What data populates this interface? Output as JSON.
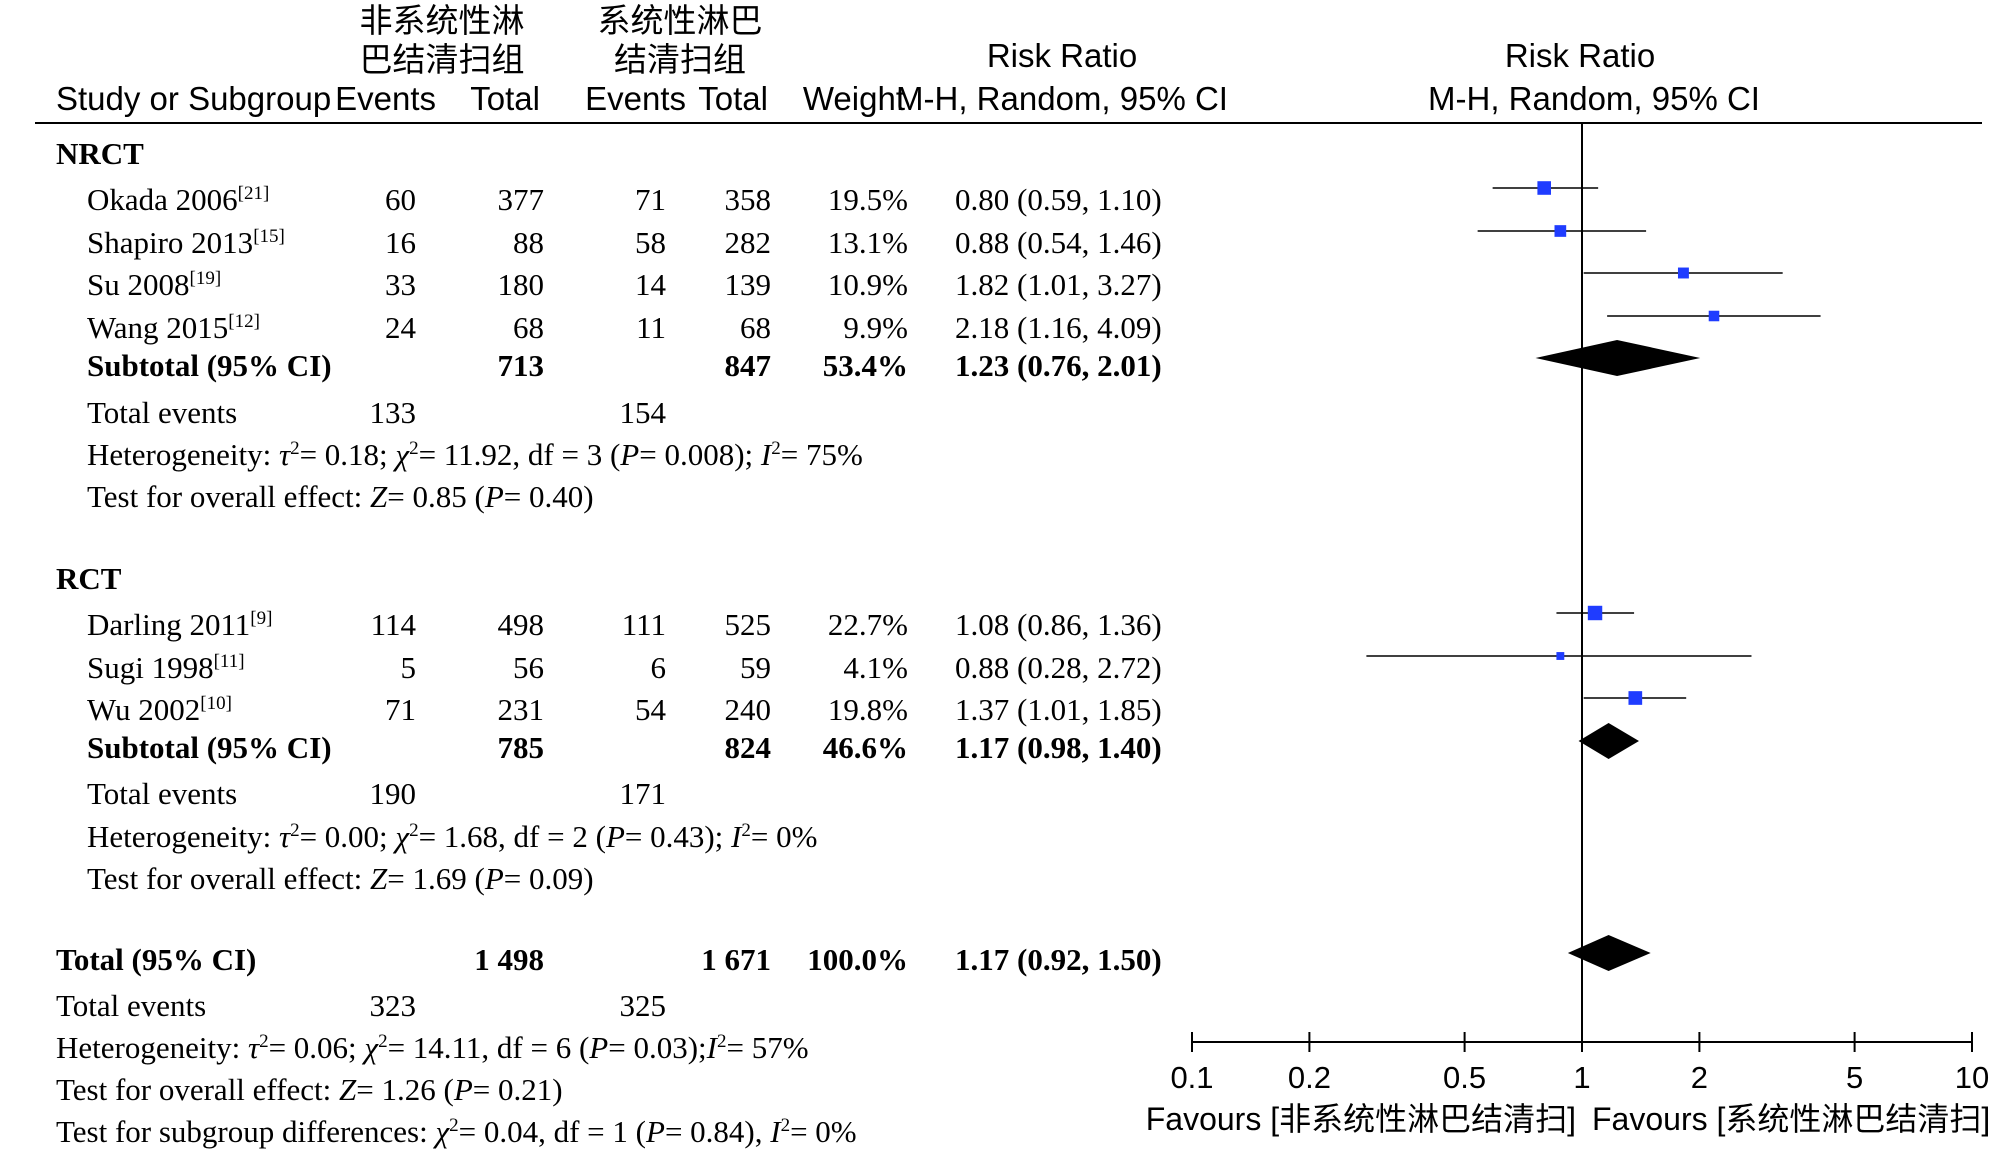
{
  "header": {
    "study_col": "Study or Subgroup",
    "group1_line1": "非系统性淋",
    "group1_line2": "巴结清扫组",
    "group2_line1": "系统性淋巴",
    "group2_line2": "结清扫组",
    "events": "Events",
    "total": "Total",
    "weight": "Weight",
    "rr_title": "Risk Ratio",
    "rr_method": "M-H, Random, 95% CI",
    "plot_title": "Risk Ratio",
    "plot_method": "M-H, Random, 95% CI"
  },
  "subgroups": [
    {
      "name": "NRCT",
      "studies": [
        {
          "name": "Okada 2006",
          "ref": "[21]",
          "e1": "60",
          "t1": "377",
          "e2": "71",
          "t2": "358",
          "weight": "19.5%",
          "ci": "0.80 (0.59, 1.10)"
        },
        {
          "name": "Shapiro 2013",
          "ref": "[15]",
          "e1": "16",
          "t1": "88",
          "e2": "58",
          "t2": "282",
          "weight": "13.1%",
          "ci": "0.88 (0.54, 1.46)"
        },
        {
          "name": "Su 2008",
          "ref": "[19]",
          "e1": "33",
          "t1": "180",
          "e2": "14",
          "t2": "139",
          "weight": "10.9%",
          "ci": "1.82 (1.01, 3.27)"
        },
        {
          "name": "Wang 2015",
          "ref": "[12]",
          "e1": "24",
          "t1": "68",
          "e2": "11",
          "t2": "68",
          "weight": "9.9%",
          "ci": "2.18 (1.16, 4.09)"
        }
      ],
      "subtotal": {
        "label": "Subtotal (95% CI)",
        "t1": "713",
        "t2": "847",
        "weight": "53.4%",
        "ci": "1.23 (0.76, 2.01)"
      },
      "total_events": {
        "label": "Total events",
        "e1": "133",
        "e2": "154"
      },
      "heterogeneity": {
        "prefix": "Heterogeneity: ",
        "tau": "τ",
        "tau_val": "= 0.18; ",
        "chi": "χ",
        "chi_val": "= 11.92, df = 3 (",
        "p": "P",
        "p_val": "= 0.008); ",
        "i": "I",
        "i_val": "= 75%"
      },
      "overall": {
        "prefix": "Test for overall effect: ",
        "z": "Z",
        "z_val": "= 0.85 (",
        "p": "P",
        "p_val": "= 0.40)"
      }
    },
    {
      "name": "RCT",
      "studies": [
        {
          "name": "Darling 2011",
          "ref": "[9]",
          "e1": "114",
          "t1": "498",
          "e2": "111",
          "t2": "525",
          "weight": "22.7%",
          "ci": "1.08 (0.86, 1.36)"
        },
        {
          "name": "Sugi 1998",
          "ref": "[11]",
          "e1": "5",
          "t1": "56",
          "e2": "6",
          "t2": "59",
          "weight": "4.1%",
          "ci": "0.88 (0.28, 2.72)"
        },
        {
          "name": "Wu 2002",
          "ref": "[10]",
          "e1": "71",
          "t1": "231",
          "e2": "54",
          "t2": "240",
          "weight": "19.8%",
          "ci": "1.37 (1.01, 1.85)"
        }
      ],
      "subtotal": {
        "label": "Subtotal (95% CI)",
        "t1": "785",
        "t2": "824",
        "weight": "46.6%",
        "ci": "1.17 (0.98, 1.40)"
      },
      "total_events": {
        "label": "Total events",
        "e1": "190",
        "e2": "171"
      },
      "heterogeneity": {
        "prefix": "Heterogeneity: ",
        "tau": "τ",
        "tau_val": "= 0.00; ",
        "chi": "χ",
        "chi_val": "= 1.68, df = 2 (",
        "p": "P",
        "p_val": "= 0.43); ",
        "i": "I",
        "i_val": "= 0%"
      },
      "overall": {
        "prefix": "Test for overall effect: ",
        "z": "Z",
        "z_val": "= 1.69 (",
        "p": "P",
        "p_val": "= 0.09)"
      }
    }
  ],
  "total": {
    "label": "Total (95% CI)",
    "t1": "1 498",
    "t2": "1 671",
    "weight": "100.0%",
    "ci": "1.17 (0.92, 1.50)"
  },
  "total_events": {
    "label": "Total events",
    "e1": "323",
    "e2": "325"
  },
  "heterogeneity": {
    "prefix": "Heterogeneity: ",
    "tau": "τ",
    "tau_val": "= 0.06; ",
    "chi": "χ",
    "chi_val": "= 14.11, df = 6 (",
    "p": "P",
    "p_val": "= 0.03);",
    "i": "I",
    "i_val": "= 57%"
  },
  "overall": {
    "prefix": "Test for overall effect: ",
    "z": "Z",
    "z_val": "= 1.26 (",
    "p": "P",
    "p_val": "= 0.21)"
  },
  "subgroup_diff": {
    "prefix": "Test for subgroup differences: ",
    "chi": "χ",
    "chi_val": "= 0.04, df = 1 (",
    "p": "P",
    "p_val": "= 0.84), ",
    "i": "I",
    "i_val": "= 0%"
  },
  "sq": "2",
  "chart_data": {
    "type": "forest",
    "scale": "log",
    "xlim": [
      0.1,
      10
    ],
    "ticks": [
      0.1,
      0.2,
      0.5,
      1,
      2,
      5,
      10
    ],
    "tick_labels": [
      "0.1",
      "0.2",
      "0.5",
      "1",
      "2",
      "5",
      "10"
    ],
    "xlabel_left": "Favours [非系统性淋巴结清扫]",
    "xlabel_right": "Favours [系统性淋巴结清扫]",
    "marker_color": "#1f3cff",
    "studies": [
      {
        "rr": 0.8,
        "lo": 0.59,
        "hi": 1.1,
        "weight": 19.5
      },
      {
        "rr": 0.88,
        "lo": 0.54,
        "hi": 1.46,
        "weight": 13.1
      },
      {
        "rr": 1.82,
        "lo": 1.01,
        "hi": 3.27,
        "weight": 10.9
      },
      {
        "rr": 2.18,
        "lo": 1.16,
        "hi": 4.09,
        "weight": 9.9
      },
      {
        "rr": 1.08,
        "lo": 0.86,
        "hi": 1.36,
        "weight": 22.7
      },
      {
        "rr": 0.88,
        "lo": 0.28,
        "hi": 2.72,
        "weight": 4.1
      },
      {
        "rr": 1.37,
        "lo": 1.01,
        "hi": 1.85,
        "weight": 19.8
      }
    ],
    "diamonds": [
      {
        "rr": 1.23,
        "lo": 0.76,
        "hi": 2.01
      },
      {
        "rr": 1.17,
        "lo": 0.98,
        "hi": 1.4
      },
      {
        "rr": 1.17,
        "lo": 0.92,
        "hi": 1.5
      }
    ]
  }
}
